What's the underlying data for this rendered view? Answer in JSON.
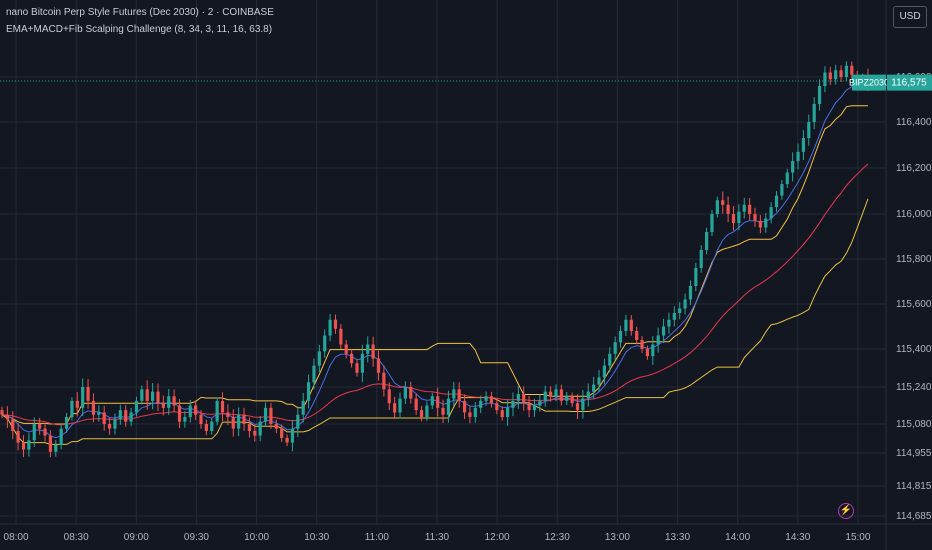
{
  "header": {
    "title": "nano Bitcoin Perp Style Futures (Dec 2030) · 2 · COINBASE",
    "indicator": "EMA+MACD+Fib Scalping Challenge (8, 34, 3, 11, 16, 63.8)"
  },
  "currency_button": "USD",
  "flash_icon": "lightning-icon",
  "colors": {
    "background": "#131722",
    "grid": "#242a36",
    "up": "#26a69a",
    "down": "#ef5350",
    "ema_fast": "#4a6fe3",
    "ema_slow": "#e8384f",
    "fib_upper": "#f5c242",
    "fib_lower": "#e6c13c",
    "price_label": "#26a69a"
  },
  "chart_data": {
    "type": "candlestick",
    "x_ticks": [
      "08:00",
      "08:30",
      "09:00",
      "09:30",
      "10:00",
      "10:30",
      "11:00",
      "11:30",
      "12:00",
      "12:30",
      "13:00",
      "13:30",
      "14:00",
      "14:30",
      "15:00"
    ],
    "y_ticks": [
      116600,
      116400,
      116200,
      116000,
      115800,
      115600,
      115400,
      115240,
      115080,
      114955,
      114815,
      114685
    ],
    "last_price_label": "BIPZ2030",
    "last_price": 116575,
    "ylim": [
      114685,
      116720
    ],
    "xlim": [
      "07:52",
      "15:14"
    ],
    "candles_close": [
      115120,
      115100,
      115050,
      115000,
      114970,
      115010,
      115080,
      115060,
      115030,
      114960,
      114990,
      115060,
      115110,
      115180,
      115150,
      115240,
      115180,
      115120,
      115130,
      115080,
      115060,
      115100,
      115140,
      115090,
      115130,
      115180,
      115230,
      115180,
      115220,
      115170,
      115150,
      115200,
      115160,
      115090,
      115110,
      115160,
      115120,
      115080,
      115050,
      115090,
      115180,
      115130,
      115110,
      115060,
      115120,
      115080,
      115050,
      115030,
      115090,
      115150,
      115080,
      115060,
      115020,
      115000,
      115060,
      115120,
      115180,
      115260,
      115330,
      115390,
      115460,
      115530,
      115490,
      115420,
      115380,
      115340,
      115300,
      115380,
      115420,
      115360,
      115300,
      115230,
      115170,
      115130,
      115190,
      115240,
      115190,
      115140,
      115110,
      115160,
      115200,
      115150,
      115120,
      115190,
      115230,
      115180,
      115130,
      115110,
      115150,
      115180,
      115200,
      115170,
      115140,
      115110,
      115150,
      115180,
      115210,
      115170,
      115140,
      115160,
      115180,
      115220,
      115200,
      115230,
      115180,
      115200,
      115170,
      115140,
      115190,
      115220,
      115250,
      115280,
      115330,
      115380,
      115430,
      115480,
      115530,
      115480,
      115440,
      115400,
      115370,
      115420,
      115460,
      115500,
      115530,
      115560,
      115580,
      115620,
      115680,
      115760,
      115840,
      115920,
      116000,
      116060,
      116040,
      116000,
      115960,
      116010,
      116040,
      116000,
      115970,
      115940,
      115980,
      116030,
      116080,
      116130,
      116180,
      116230,
      116270,
      116330,
      116400,
      116480,
      116560,
      116620,
      116590,
      116630,
      116600,
      116650,
      116610,
      116570,
      116600,
      116575
    ],
    "ema_fast_range": [
      114960,
      116600
    ],
    "ema_slow_range": [
      115090,
      116380
    ],
    "fib_upper_range": [
      115100,
      116380
    ],
    "fib_lower_range": [
      115040,
      116130
    ]
  }
}
